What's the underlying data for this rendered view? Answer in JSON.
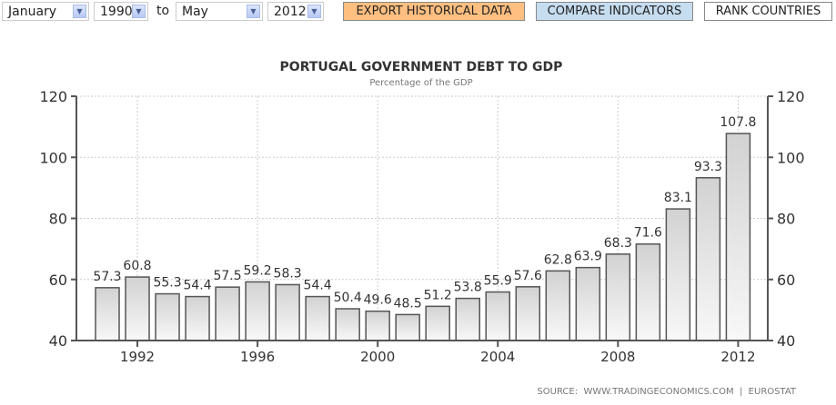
{
  "controls": {
    "from_month": "January",
    "from_year": "1990",
    "to_label": "to",
    "to_month": "May",
    "to_year": "2012",
    "export_label": "EXPORT HISTORICAL DATA",
    "compare_label": "COMPARE INDICATORS",
    "rank_label": "RANK COUNTRIES"
  },
  "colors": {
    "export": "#ffbf80",
    "compare": "#c6ddf0",
    "rank": "#ffffff"
  },
  "source": "SOURCE:  WWW.TRADINGECONOMICS.COM  |  EUROSTAT",
  "chart_data": {
    "type": "bar",
    "title": "PORTUGAL GOVERNMENT DEBT TO GDP",
    "subtitle": "Percentage of the GDP",
    "xlabel": "",
    "ylabel": "",
    "ylim": [
      40,
      120
    ],
    "yticks": [
      "40",
      "60",
      "80",
      "100",
      "120"
    ],
    "xticks": [
      "1992",
      "1996",
      "2000",
      "2004",
      "2008",
      "2012"
    ],
    "categories": [
      "1991",
      "1992",
      "1993",
      "1994",
      "1995",
      "1996",
      "1997",
      "1998",
      "1999",
      "2000",
      "2001",
      "2002",
      "2003",
      "2004",
      "2005",
      "2006",
      "2007",
      "2008",
      "2009",
      "2010",
      "2011",
      "2012"
    ],
    "values": [
      57.3,
      60.8,
      55.3,
      54.4,
      57.5,
      59.2,
      58.3,
      54.4,
      50.4,
      49.6,
      48.5,
      51.2,
      53.8,
      55.9,
      57.6,
      62.8,
      63.9,
      68.3,
      71.6,
      83.1,
      93.3,
      107.8
    ],
    "grid": true
  }
}
